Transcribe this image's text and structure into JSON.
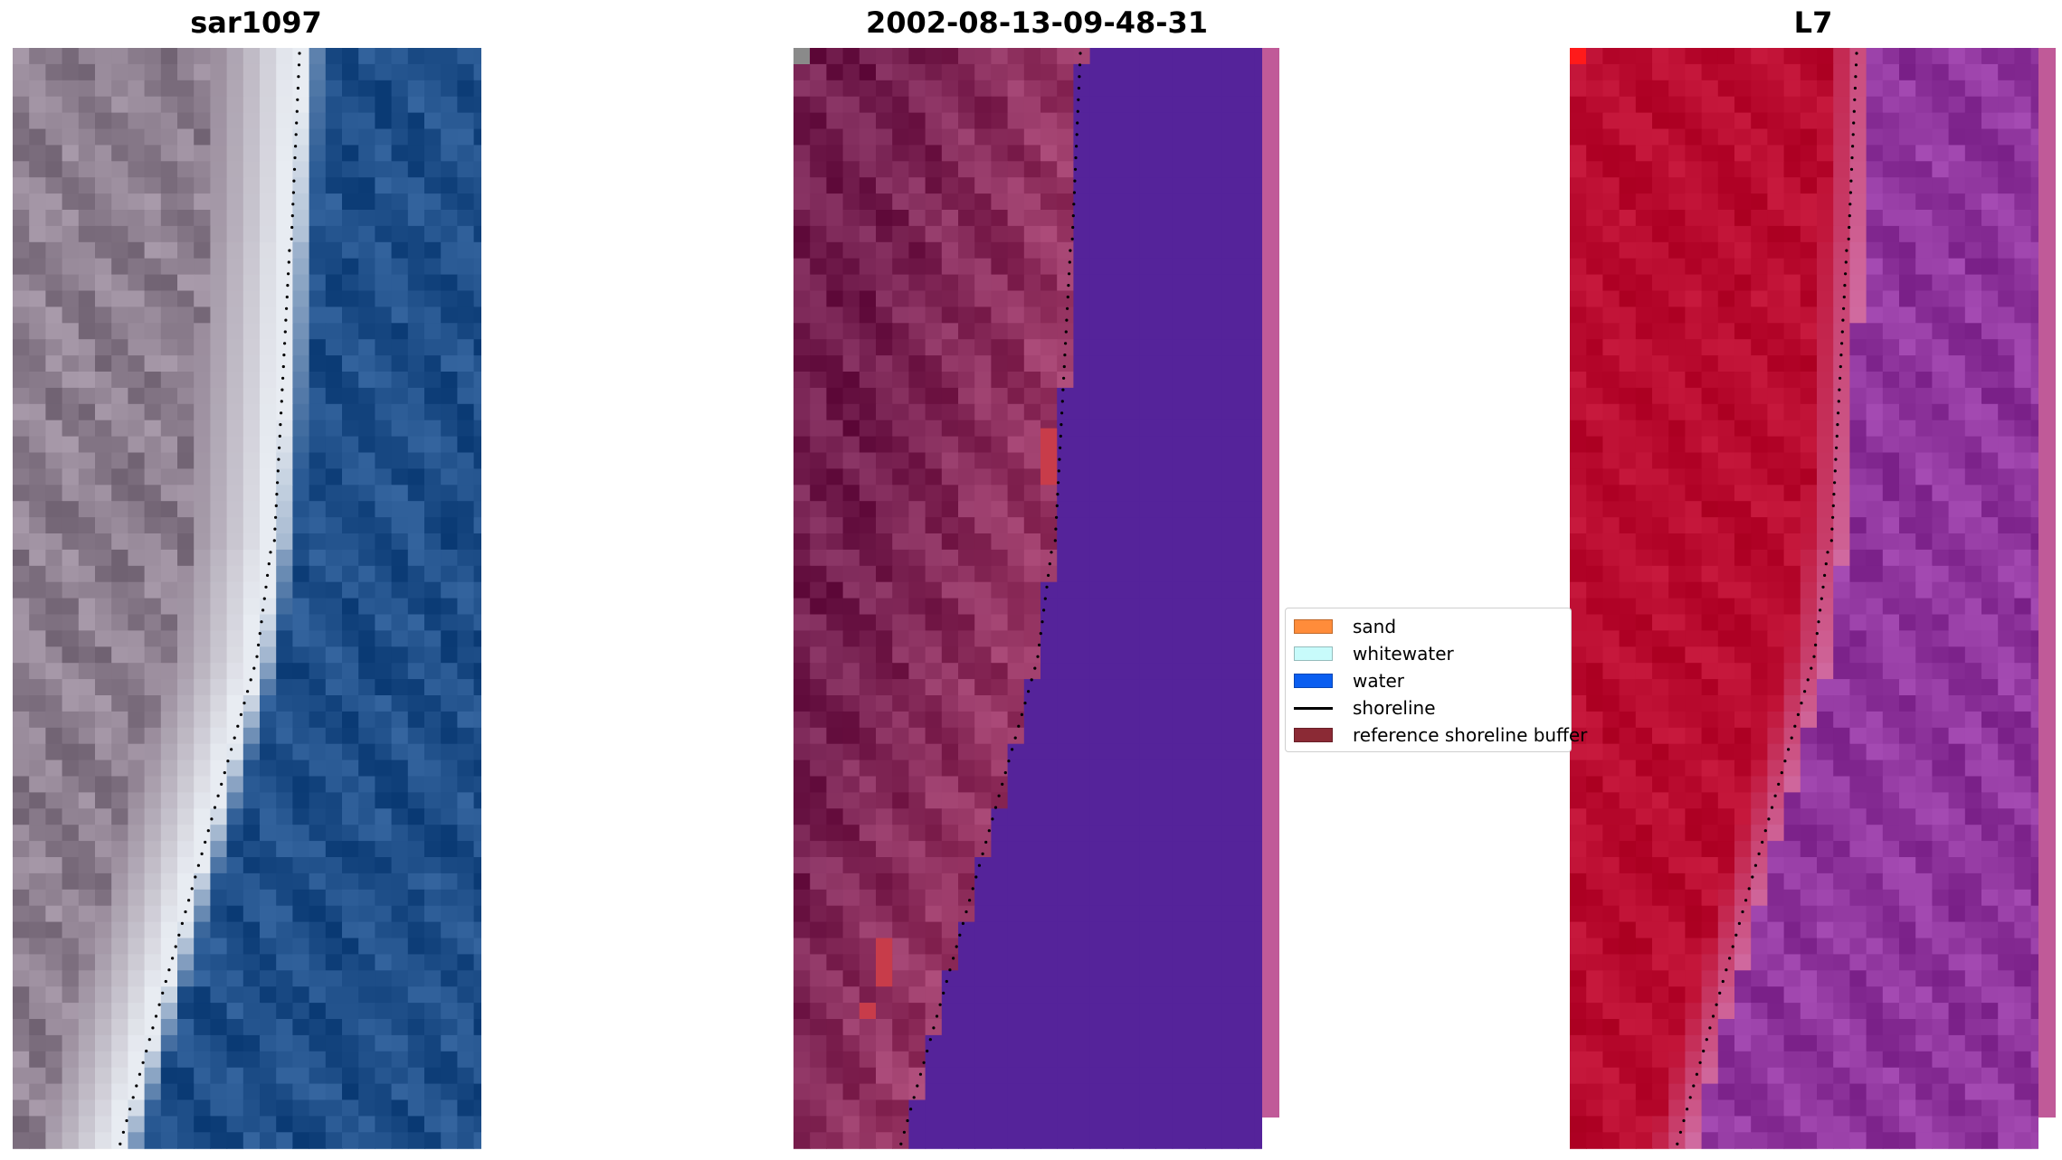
{
  "panels": [
    {
      "title": "sar1097"
    },
    {
      "title": "2002-08-13-09-48-31"
    },
    {
      "title": "L7"
    }
  ],
  "legend": {
    "items": [
      {
        "label": "sand",
        "color": "#ff8c3a",
        "kind": "patch"
      },
      {
        "label": "whitewater",
        "color": "#c8fbfb",
        "kind": "patch"
      },
      {
        "label": "water",
        "color": "#0a5ef0",
        "kind": "patch"
      },
      {
        "label": "shoreline",
        "color": "#000000",
        "kind": "line"
      },
      {
        "label": "reference shoreline buffer",
        "color": "#8b2a35",
        "kind": "patch"
      }
    ]
  },
  "colors": {
    "rgb_land": "#9a8c9c",
    "rgb_beach": "#e8ecf2",
    "rgb_water": "#2a5a94",
    "overlay_land": "#a64472",
    "overlay_water": "#55239a",
    "buffer_patch": "#c83c4a",
    "ndwi_land": "#c01236",
    "ndwi_water": "#9a40a8"
  }
}
